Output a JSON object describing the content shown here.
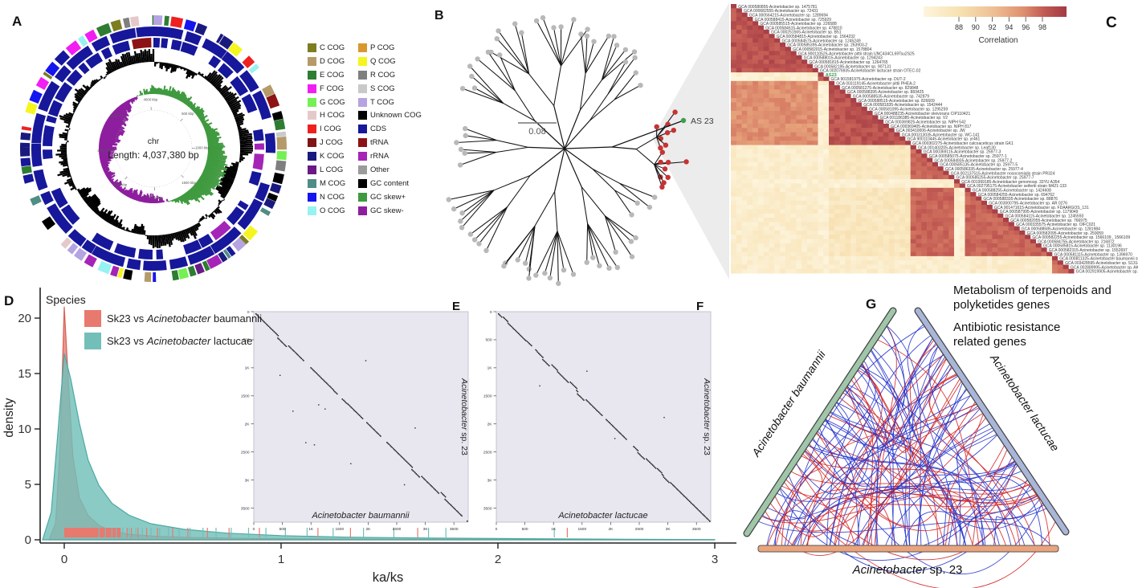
{
  "panelA": {
    "label": "A",
    "center_title": "chr",
    "center_subtitle": "Length: 4,037,380 bp",
    "genome_length_bp": 4037380,
    "scale_ticks": [
      "500 kbp",
      "1000 kbp",
      "1500 kbp",
      "2000 kbp",
      "2500 kbp",
      "3000 kbp",
      "3500 kbp",
      "4000 kbp"
    ],
    "legend": {
      "left": [
        [
          "C COG",
          "#7d7d21"
        ],
        [
          "D COG",
          "#b59a6a"
        ],
        [
          "E COG",
          "#2e7d32"
        ],
        [
          "F COG",
          "#f21df2"
        ],
        [
          "G COG",
          "#74f052"
        ],
        [
          "H COG",
          "#e5c9c9"
        ],
        [
          "I COG",
          "#ef2020"
        ],
        [
          "J COG",
          "#7e1416"
        ],
        [
          "K COG",
          "#1a1a7e"
        ],
        [
          "L COG",
          "#681a86"
        ],
        [
          "M COG",
          "#4f8d85"
        ],
        [
          "N COG",
          "#1515ef"
        ],
        [
          "O COG",
          "#97f2f2"
        ]
      ],
      "right": [
        [
          "P COG",
          "#d9982f"
        ],
        [
          "Q COG",
          "#f5f520"
        ],
        [
          "R COG",
          "#7f7f7f"
        ],
        [
          "S COG",
          "#c9c9c9"
        ],
        [
          "T COG",
          "#b6a3e2"
        ],
        [
          "Unknown COG",
          "#000000"
        ],
        [
          "CDS",
          "#17179b"
        ],
        [
          "tRNA",
          "#8c1216"
        ],
        [
          "rRNA",
          "#a524b8"
        ],
        [
          "Other",
          "#9b9b9b"
        ],
        [
          "GC content",
          "#000000"
        ],
        [
          "GC skew+",
          "#3f9a3f"
        ],
        [
          "GC skew-",
          "#8d1f9e"
        ]
      ]
    }
  },
  "panelB": {
    "label": "B",
    "scale_bar_label": "0.08",
    "highlight_tip_label": "AS 23",
    "tip_color": "#b8b8b8",
    "highlight_cluster_color": "#c63333",
    "highlight_tip_color": "#3f9e4d",
    "wedge_color": "#ececec"
  },
  "panelC": {
    "label": "C",
    "colorbar_label": "Correlation"
  },
  "panelD": {
    "label": "D",
    "xlabel": "ka/ks",
    "ylabel": "density",
    "legend": {
      "title": "Species",
      "entries": [
        {
          "pre": "Sk23 vs ",
          "it": "Acinetobacter",
          "post": " baumannii",
          "color": "#e8796f"
        },
        {
          "pre": "Sk23 vs ",
          "it": "Acinetobacter",
          "post": " lactucae",
          "color": "#72bfb9"
        }
      ]
    }
  },
  "panelE": {
    "label": "E",
    "xlabel": "Acinetobacter baumannii",
    "ylabel_it": "Acinetobacter",
    "ylabel_post": " sp. 23"
  },
  "panelF": {
    "label": "F",
    "xlabel": "Acinetobacter lactucae",
    "ylabel_it": "Acinetobacter",
    "ylabel_post": " sp. 23"
  },
  "panelG": {
    "label": "G",
    "annotation1_line1": "Metabolism of terpenoids and",
    "annotation1_line2": "polyketides genes",
    "annotation2_line1": "Antibiotic resistance",
    "annotation2_line2": "related genes",
    "bar_left_label": "Acinetobacter baumannii",
    "bar_right_label": "Acinetobacter lactucae",
    "bottom_it": "Acinetobacter",
    "bottom_post": " sp. 23",
    "bar_left_color": "#9fc6a9",
    "bar_right_color": "#aab6d8",
    "bar_bottom_color": "#e9a47e",
    "arc_red": "#d42222",
    "arc_blue": "#2433cc"
  },
  "chart_data": [
    {
      "type": "area",
      "panel": "D",
      "xlabel": "ka/ks",
      "ylabel": "density",
      "xticks": [
        0,
        1,
        2,
        3
      ],
      "yticks": [
        0,
        5,
        10,
        15,
        20
      ],
      "xlim": [
        -0.12,
        3.05
      ],
      "ylim": [
        0,
        21
      ],
      "legend_title": "Species",
      "series": [
        {
          "name": "Sk23 vs Acinetobacter baumannii",
          "color": "#e8796f",
          "x": [
            -0.07,
            -0.04,
            -0.02,
            0,
            0.02,
            0.04,
            0.07,
            0.11,
            0.16,
            0.22,
            0.3,
            0.42,
            0.6,
            0.85,
            1.2,
            1.6,
            2.1,
            2.6,
            3.0
          ],
          "y": [
            0,
            1.5,
            8,
            21,
            14,
            7.5,
            3.8,
            2.2,
            1.3,
            0.8,
            0.5,
            0.32,
            0.2,
            0.12,
            0.07,
            0.045,
            0.025,
            0.012,
            0
          ]
        },
        {
          "name": "Sk23 vs Acinetobacter lactucae",
          "color": "#72bfb9",
          "x": [
            -0.1,
            -0.06,
            -0.03,
            0,
            0.03,
            0.07,
            0.11,
            0.16,
            0.22,
            0.3,
            0.4,
            0.55,
            0.75,
            1.0,
            1.3,
            1.7,
            2.1,
            2.6,
            3.0
          ],
          "y": [
            0,
            2.5,
            9.5,
            16.8,
            14.5,
            10.5,
            7.2,
            4.9,
            3.3,
            2.2,
            1.45,
            0.95,
            0.6,
            0.38,
            0.24,
            0.15,
            0.1,
            0.05,
            0.02
          ]
        }
      ],
      "rug": {
        "baumannii_block": [
          0,
          0.26
        ],
        "baumannii_ticks": [
          0.29,
          0.31,
          0.34,
          0.38,
          0.43,
          0.5,
          0.57,
          0.66,
          0.76,
          0.9,
          1.17,
          1.32,
          1.63,
          2.32
        ],
        "lactucae_ticks": [
          0.16,
          0.19,
          0.22,
          0.24,
          0.27,
          0.3,
          0.33,
          0.36,
          0.4,
          0.44,
          0.48,
          0.53,
          0.58,
          0.64,
          0.7,
          0.77,
          0.85,
          0.93,
          1.02,
          1.12,
          1.24,
          1.38,
          1.52,
          1.68,
          1.76,
          2.26
        ]
      }
    },
    {
      "type": "heatmap",
      "panel": "C",
      "colorbar": {
        "label": "Correlation",
        "ticks": [
          88,
          90,
          92,
          94,
          96,
          98
        ],
        "min_color": "#fdf5de",
        "max_color": "#a23a44"
      },
      "highlight_index": 16,
      "species": [
        "GCA 000580855-Acinetobacter sp. 1475781",
        "GCA 000682555-Acinetobacter sp. 72431",
        "GCA 000564215-Acinetobacter sp. 1289694",
        "GCA 000588415-Acinetobacter sp. 725929",
        "GCA 000585515-Acinetobacter sp. 226588",
        "GCA 000584615-Acinetobacter sp. 478810",
        "GCA 000251565-Acinetobacter sp. B51",
        "GCA 000584815-Acinetobacter sp. 1564232",
        "GCA 000584575-Acinetobacter sp. 1245249",
        "GCA 000585395-Acinetobacter sp. 263903-2",
        "GCA 000582015-Acinetobacter sp. 1578804",
        "GCA 900110525-Acinetobacter pittii strain UNC434CL69Tsu2S25",
        "GCA 000588015-Acinetobacter sp. 1294243",
        "GCA 000581815-Acinetobacter sp. 1264765",
        "GCA 000582195-Acinetobacter sp. 907131",
        "GCA 002076935-Acinetobacter lactucae strain OTEC-02",
        "AS23",
        "GCA 901581975-Acinetobacter sp. DUT-2",
        "GCA 003119145-Acinetobacter pittii PHEA-2",
        "GCA 000581275-Acinetobacter sp. 829848",
        "GCA 000588395-Acinetobacter sp. 883425",
        "GCA 000588535-Acinetobacter sp. 742879",
        "GCA 000588515-Acinetobacter sp. 826609",
        "GCA 000581835-Acinetobacter sp. 1542444",
        "GCA 000581095-Acinetobacter sp. 1295259",
        "GCA 000488235-Acinetobacter oleivorans CIP110421",
        "GCA 001186385-Acinetobacter sp. V2",
        "GCA 000369825-Acinetobacter sp. NIPH 542",
        "GCA 000369405-Acinetobacter sp. NIPH 817",
        "GCA 003410006-Acinetobacter sp. JW",
        "GCA 000313035-Acinetobacter sp. WC-141",
        "GCA 900110445-Acinetobacter sp. yr461",
        "GCA 000302275-Acinetobacter calcoaceticus strain GK1",
        "GCA 001403205-Acinetobacter sp. Leaf130",
        "GCA 000369115-Acinetobacter sp. 25977-3",
        "GCA 000585075-Acinetobacter sp. 25977-1",
        "GCA 000584935-Acinetobacter sp. 25977-2",
        "GCA 000585135-Acinetobacter sp. 25977-5",
        "GCA 000586335-Acinetobacter sp. 25977-4",
        "GCA 002137515-Acinetobacter nosocomialis strain PR324",
        "GCA 000585255-Acinetobacter sp. 25977-7",
        "GCA 001999185-Acinetobacter genomosp. 33YU A354",
        "GCA 002795175-Acinetobacter seifertii strain M421-133",
        "GCA 000588255-Acinetobacter sp. 1424608",
        "GCA 000584255-Acinetobacter sp. 694762",
        "GCA 000588335-Acinetobacter sp. 88876",
        "GCA 003000795-Acinetobacter sp. AR 0276",
        "GCA 901471615-Acinetobacter sp. FDAARGOS_131",
        "GCA 000587995-Acinetobacter sp. 1179049",
        "GCA 000584115-Acinetobacter sp. 1245593",
        "GCA 000582055-Acinetobacter sp. 766975",
        "GCA 000335575-Acinetobacter sp. OIFC021",
        "GCA 000588585-Acinetobacter sp. 1281984",
        "GCA 000582095-Acinetobacter sp. 259059",
        "GCA 000582255-Acinetobacter sp. 1566109 , 1566109",
        "GCA 000584755-Acinetobacter sp. 216872",
        "GCA 000585815-Acinetobacter sp. 1130196",
        "GCA 000582315-Acinetobacter sp. 1552697",
        "GCA 000581115-Acinetobacter sp. 1396970",
        "GCA 000811325-Acinetobacter baumannii strain UH126_106",
        "GCA 003428595-Acinetobacter sp. S131434",
        "GCA 002889995-Acinetobacter sp. AKBS16",
        "GCA 002919905-Acinetobacter sp. ABNIH27"
      ],
      "clusters": {
        "A": [
          0,
          15
        ],
        "B": [
          18,
          32
        ],
        "C": [
          33,
          58
        ],
        "D": [
          59,
          62
        ],
        "outliers": [
          16,
          17,
          41,
          42
        ]
      },
      "correlation_rule": {
        "within_A": 98.2,
        "within_B": 98.2,
        "within_C": 97.3,
        "within_D": 96.5,
        "A_B": 95.2,
        "A_C": 88.3,
        "B_C": 89.2,
        "with_D": 88.3,
        "outlier_vs_any": 87.8,
        "outlier_pair": 96.8,
        "diagonal": 99.3
      }
    },
    {
      "type": "scatter",
      "panel": "E",
      "xlabel": "Acinetobacter baumannii",
      "ylabel": "Acinetobacter sp. 23",
      "xticks": [
        "0",
        "500",
        "1K",
        "1500",
        "2K",
        "2500",
        "3K",
        "3500"
      ],
      "yticks": [
        "0",
        "500",
        "1K",
        "1500",
        "2K",
        "2500",
        "3K",
        "3500"
      ],
      "pattern": "synteny dot plot, near-perfect descending diagonal with small breaks"
    },
    {
      "type": "scatter",
      "panel": "F",
      "xlabel": "Acinetobacter lactucae",
      "ylabel": "Acinetobacter sp. 23",
      "xticks": [
        "0",
        "500",
        "1K",
        "1500",
        "2K",
        "2500",
        "3K",
        "3500"
      ],
      "yticks": [
        "0",
        "500",
        "1K",
        "1500",
        "2K",
        "2500",
        "3K",
        "3500"
      ],
      "pattern": "synteny dot plot, near-perfect descending diagonal with small breaks"
    },
    {
      "type": "tree",
      "panel": "B",
      "style": "unrooted",
      "scale_bar": "0.08",
      "tips": {
        "gray": 70,
        "red": 17,
        "green": 1
      },
      "green_tip_label": "AS 23"
    },
    {
      "type": "arc-links",
      "panel": "G",
      "sequences": [
        "Acinetobacter baumannii",
        "Acinetobacter lactucae",
        "Acinetobacter sp. 23"
      ],
      "link_colors": [
        "#d42222",
        "#2433cc"
      ],
      "annotations": [
        "Metabolism of terpenoids and polyketides genes",
        "Antibiotic resistance related genes"
      ]
    }
  ]
}
